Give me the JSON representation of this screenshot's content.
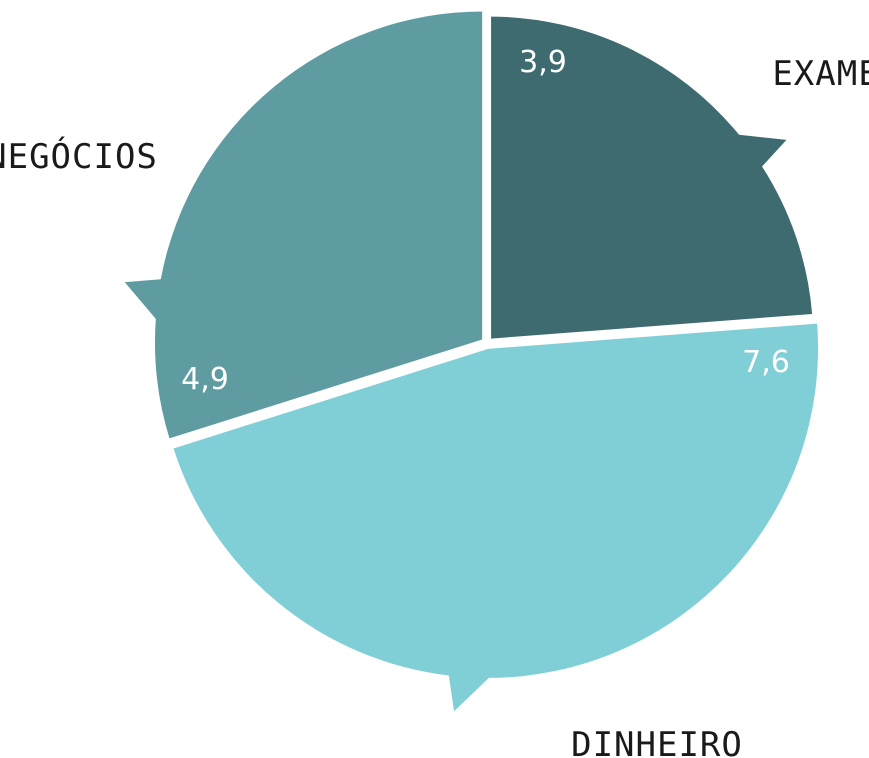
{
  "chart_data": {
    "type": "pie",
    "categories": [
      "EXAME",
      "DINHEIRO",
      "NEGÓCIOS"
    ],
    "values": [
      3.9,
      7.6,
      4.9
    ],
    "value_labels": [
      "3,9",
      "7,6",
      "4,9"
    ],
    "colors": [
      "#3d6b70",
      "#80cfd7",
      "#5f9ca2"
    ],
    "legend": "none",
    "start": "12 o'clock",
    "direction": "clockwise",
    "exploded": true
  }
}
